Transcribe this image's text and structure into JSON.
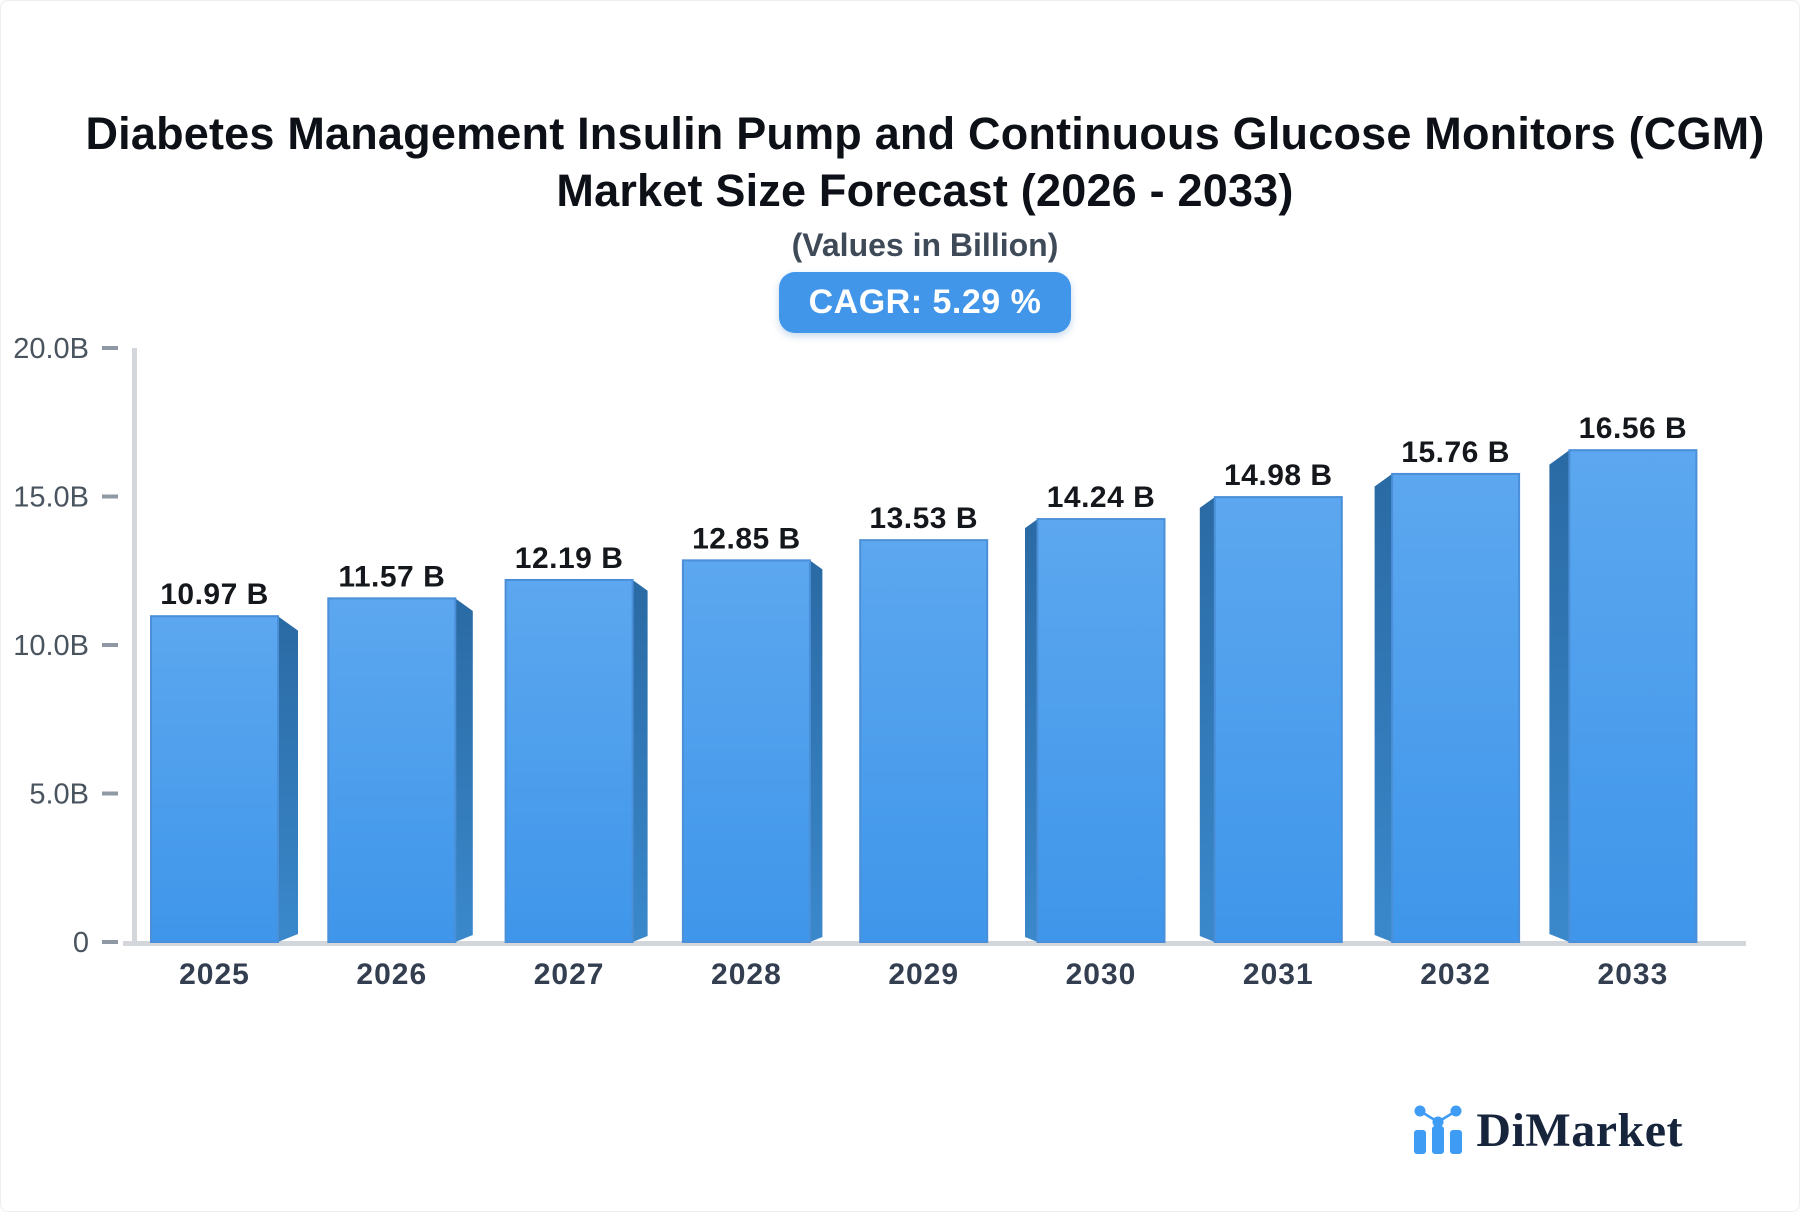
{
  "header": {
    "title_line1": "Diabetes Management Insulin Pump and Continuous Glucose Monitors (CGM)",
    "title_line2": "Market Size Forecast (2026 - 2033)",
    "subtitle": "(Values in Billion)",
    "cagr_label": "CAGR: 5.29 %"
  },
  "chart_data": {
    "type": "bar",
    "title": "Diabetes Management Insulin Pump and Continuous Glucose Monitors (CGM) Market Size Forecast (2026 - 2033)",
    "subtitle": "(Values in Billion)",
    "cagr_text": "CAGR: 5.29 %",
    "categories": [
      "2025",
      "2026",
      "2027",
      "2028",
      "2029",
      "2030",
      "2031",
      "2032",
      "2033"
    ],
    "values": [
      10.97,
      11.57,
      12.19,
      12.85,
      13.53,
      14.24,
      14.98,
      15.76,
      16.56
    ],
    "value_labels": [
      "10.97 B",
      "11.57 B",
      "12.19 B",
      "12.85 B",
      "13.53 B",
      "14.24 B",
      "14.98 B",
      "15.76 B",
      "16.56 B"
    ],
    "unit": "Billion",
    "xlabel": "",
    "ylabel": "",
    "ylim": [
      0,
      20
    ],
    "yticks": [
      {
        "v": 0,
        "label": "0"
      },
      {
        "v": 5,
        "label": "5.0B"
      },
      {
        "v": 10,
        "label": "10.0B"
      },
      {
        "v": 15,
        "label": "15.0B"
      },
      {
        "v": 20,
        "label": "20.0B"
      }
    ],
    "grid": false,
    "legend": "none",
    "bar_style": "3d-perspective",
    "colors": {
      "bar_face_top": "#5CA7EF",
      "bar_face_bottom": "#3F96EA",
      "bar_side_top": "#2A6AA4",
      "bar_side_bottom": "#3A88CB",
      "bar_stroke": "#4A8FD7",
      "axis_line": "#D3D7DC",
      "tick_mark": "#8F99A4",
      "tick_label": "#49545F",
      "value_label": "#14171B",
      "year_label": "#333E50",
      "title": "#0D1117",
      "subtitle": "#3F4A59",
      "badge_bg": "#4196EA",
      "badge_text": "#FFFFFF"
    }
  },
  "branding": {
    "logo_text": "DiMarket",
    "icon_color": "#3F9CF4",
    "text_color": "#16243C",
    "icon": "bar-chart-with-trend-dots"
  }
}
